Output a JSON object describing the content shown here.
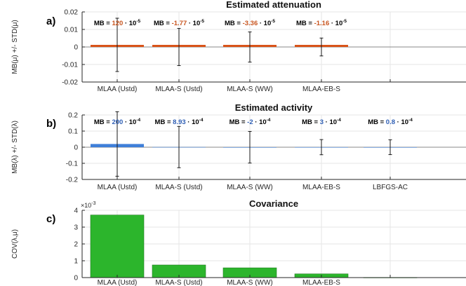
{
  "colors": {
    "attenuation_bar": "#D95319",
    "attenuation_label": "#C8551F",
    "activity_bar": "#3F7FD9",
    "activity_label": "#2F5FB5",
    "covariance_bar": "#2CB52C",
    "axis": "#262626",
    "grid": "#e6e6e6",
    "zero_line": "#8a8a8a"
  },
  "chart_data": [
    {
      "type": "bar",
      "panel_letter": "a)",
      "title": "Estimated attenuation",
      "ylabel": "MB(μ) +/- STD(μ)",
      "ylim": [
        -0.02,
        0.02
      ],
      "yticks": [
        -0.02,
        -0.01,
        0,
        0.01,
        0.02
      ],
      "ytick_labels": [
        "-0.02",
        "-0.01",
        "0",
        "0.01",
        "0.02"
      ],
      "categories": [
        "MLAA (Ustd)",
        "MLAA-S (Ustd)",
        "MLAA-S (WW)",
        "MLAA-EB-S",
        ""
      ],
      "values": [
        0.0012,
        -1.77e-05,
        -3.36e-05,
        -1.16e-05,
        null
      ],
      "errors": [
        0.0152,
        0.0106,
        0.0086,
        0.0051,
        null
      ],
      "bar_color_key": "attenuation_bar",
      "label_color_key": "attenuation_label",
      "annotations": [
        {
          "prefix": "MB = ",
          "value": "120",
          "suffix": " · 10",
          "exp": "-5"
        },
        {
          "prefix": "MB = ",
          "value": "-1.77",
          "suffix": " · 10",
          "exp": "-5"
        },
        {
          "prefix": "MB = ",
          "value": "-3.36",
          "suffix": " · 10",
          "exp": "-5"
        },
        {
          "prefix": "MB = ",
          "value": "-1.16",
          "suffix": " · 10",
          "exp": "-5"
        }
      ],
      "grid": true
    },
    {
      "type": "bar",
      "panel_letter": "b)",
      "title": "Estimated activity",
      "ylabel": "MB(λ) +/- STD(λ)",
      "ylim": [
        -0.2,
        0.2
      ],
      "yticks": [
        -0.2,
        -0.1,
        0,
        0.1,
        0.2
      ],
      "ytick_labels": [
        "-0.2",
        "-0.1",
        "0",
        "0.1",
        "0.2"
      ],
      "categories": [
        "MLAA (Ustd)",
        "MLAA-S (Ustd)",
        "MLAA-S (WW)",
        "MLAA-EB-S",
        "LBFGS-AC"
      ],
      "values": [
        0.02,
        0.000893,
        -0.0002,
        0.0003,
        8e-05
      ],
      "errors": [
        0.2,
        0.128,
        0.098,
        0.047,
        0.046
      ],
      "bar_color_key": "activity_bar",
      "label_color_key": "activity_label",
      "annotations": [
        {
          "prefix": "MB = ",
          "value": "200",
          "suffix": " · 10",
          "exp": "-4"
        },
        {
          "prefix": "MB = ",
          "value": "8.93",
          "suffix": " · 10",
          "exp": "-4"
        },
        {
          "prefix": "MB = ",
          "value": "-2",
          "suffix": " · 10",
          "exp": "-4"
        },
        {
          "prefix": "MB = ",
          "value": "3",
          "suffix": " · 10",
          "exp": "-4"
        },
        {
          "prefix": "MB = ",
          "value": "0.8",
          "suffix": " · 10",
          "exp": "-4"
        }
      ],
      "grid": true
    },
    {
      "type": "bar",
      "panel_letter": "c)",
      "title": "Covariance",
      "ylabel": "COV(λ,μ)",
      "ylim": [
        0,
        0.004
      ],
      "yticks": [
        0,
        0.001,
        0.002,
        0.003,
        0.004
      ],
      "ytick_labels": [
        "0",
        "1",
        "2",
        "3",
        "4"
      ],
      "exponent_label": "×10",
      "exponent_power": "-3",
      "categories": [
        "MLAA (Ustd)",
        "MLAA-S (Ustd)",
        "MLAA-S (WW)",
        "MLAA-EB-S",
        ""
      ],
      "values": [
        0.00372,
        0.00075,
        0.00058,
        0.00022,
        1e-05
      ],
      "bar_color_key": "covariance_bar",
      "grid": true
    }
  ]
}
